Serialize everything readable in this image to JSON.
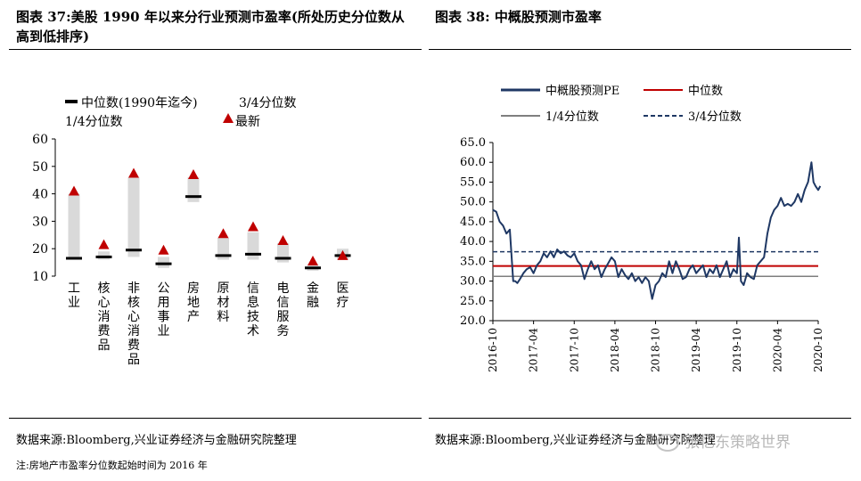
{
  "left": {
    "title": "图表 37:美股 1990 年以来分行业预测市盈率(所处历史分位数从高到低排序)",
    "source": "数据来源:Bloomberg,兴业证券经济与金融研究院整理",
    "note": "注:房地产市盈率分位数起始时间为 2016 年"
  },
  "right": {
    "title": "图表 38: 中概股预测市盈率",
    "source": "数据来源:Bloomberg,兴业证券经济与金融研究院整理"
  },
  "watermark": "张忆东策略世界",
  "colors": {
    "bar": "#d9d9d9",
    "median": "#000000",
    "latest": "#c00000",
    "pe_line": "#1f3864",
    "median_line": "#c00000",
    "q1_line": "#7f7f7f",
    "q3_line": "#1f3864"
  },
  "chart_data": [
    {
      "type": "bar",
      "categories": [
        "工业",
        "核心消费品",
        "非核心消费品",
        "公用事业",
        "房地产",
        "原材料",
        "信息技术",
        "电信服务",
        "金融",
        "医疗"
      ],
      "series": [
        {
          "name": "1/4分位数",
          "values": [
            16,
            16,
            17,
            13,
            37,
            16,
            16,
            15,
            12,
            16
          ]
        },
        {
          "name": "3/4分位数",
          "values": [
            40,
            19,
            46,
            17,
            46,
            24,
            26,
            22,
            14,
            20
          ]
        },
        {
          "name": "中位数(1990年迄今)",
          "values": [
            16.5,
            17,
            19.5,
            14.5,
            39,
            17.5,
            18,
            16.5,
            13,
            17.5
          ]
        },
        {
          "name": "最新",
          "values": [
            41,
            21.5,
            47.5,
            19.5,
            47,
            25.5,
            28,
            23,
            15.5,
            17.5
          ]
        }
      ],
      "legend": {
        "median": "中位数(1990年迄今)",
        "q3": "3/4分位数",
        "q1": "1/4分位数",
        "latest": "最新"
      },
      "ylim": [
        10,
        60
      ],
      "yticks": [
        "60",
        "50",
        "40",
        "30",
        "20",
        "10"
      ],
      "ytick_values": [
        60,
        50,
        40,
        30,
        20,
        10
      ],
      "grid": false
    },
    {
      "type": "line",
      "x_start": "2016-10",
      "x_end": "2020-10",
      "xticks": [
        "2016-10",
        "2017-04",
        "2017-10",
        "2018-04",
        "2018-10",
        "2019-04",
        "2019-10",
        "2020-04",
        "2020-10"
      ],
      "xtick_values": [
        0,
        6,
        12,
        18,
        24,
        30,
        36,
        42,
        48
      ],
      "ylim": [
        20,
        65
      ],
      "yticks": [
        "65.0",
        "60.0",
        "55.0",
        "50.0",
        "45.0",
        "40.0",
        "35.0",
        "30.0",
        "25.0",
        "20.0"
      ],
      "ytick_values": [
        65,
        60,
        55,
        50,
        45,
        40,
        35,
        30,
        25,
        20
      ],
      "legend": {
        "pe": "中概股预测PE",
        "median": "中位数",
        "q1": "1/4分位数",
        "q3": "3/4分位数"
      },
      "median": 33.8,
      "q1": 31.2,
      "q3": 37.4,
      "series": [
        {
          "name": "中概股预测PE",
          "x": [
            0,
            0.5,
            1,
            1.5,
            2,
            2.5,
            3,
            3.3,
            3.6,
            4,
            4.5,
            5,
            5.5,
            6,
            6.5,
            7,
            7.5,
            8,
            8.5,
            9,
            9.5,
            10,
            10.5,
            11,
            11.5,
            12,
            12.5,
            13,
            13.5,
            14,
            14.5,
            15,
            15.5,
            16,
            16.5,
            17,
            17.5,
            18,
            18.5,
            19,
            19.5,
            20,
            20.5,
            21,
            21.5,
            22,
            22.5,
            23,
            23.5,
            24,
            24.5,
            25,
            25.5,
            26,
            26.5,
            27,
            27.5,
            28,
            28.5,
            29,
            29.5,
            30,
            30.5,
            31,
            31.5,
            32,
            32.5,
            33,
            33.5,
            34,
            34.5,
            35,
            35.5,
            36,
            36.3,
            36.6,
            37,
            37.5,
            38,
            38.5,
            39,
            39.5,
            40,
            40.5,
            41,
            41.5,
            42,
            42.5,
            43,
            43.5,
            44,
            44.5,
            45,
            45.5,
            46,
            46.5,
            47,
            47.3,
            47.6,
            48,
            48.3
          ],
          "y": [
            48,
            47.5,
            45,
            44,
            42,
            43,
            30,
            30,
            29.5,
            30.5,
            32,
            33,
            33.5,
            32,
            34,
            35,
            37,
            36,
            37.5,
            36,
            38,
            37,
            37.5,
            36.5,
            36,
            37,
            35,
            34,
            30.5,
            33,
            35,
            33,
            34,
            31,
            33,
            34.5,
            36,
            35,
            31,
            33,
            31.5,
            30.5,
            32,
            30,
            31,
            29.5,
            31,
            30,
            25.5,
            29,
            30,
            32,
            31,
            35,
            32,
            35,
            33,
            30.5,
            31,
            33,
            34,
            32,
            33,
            34,
            31,
            33,
            32,
            34,
            31,
            33,
            35,
            31,
            33,
            32,
            41,
            30,
            29,
            32,
            31,
            30.5,
            34,
            35,
            36,
            42,
            46,
            48,
            49,
            51,
            49,
            49.5,
            49,
            50,
            52,
            50,
            53,
            55,
            60,
            55,
            54,
            53,
            54
          ]
        }
      ],
      "grid": false
    }
  ]
}
